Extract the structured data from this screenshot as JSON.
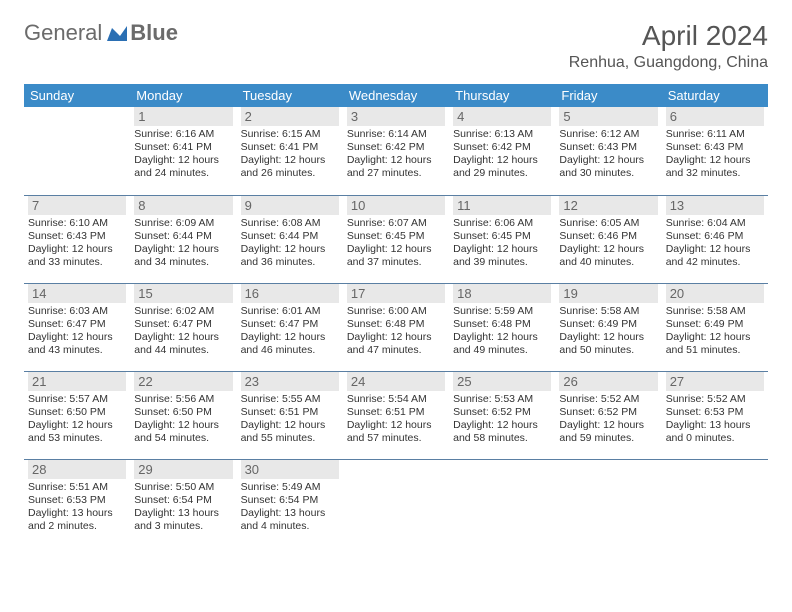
{
  "logo": {
    "text1": "General",
    "text2": "Blue"
  },
  "title": "April 2024",
  "location": "Renhua, Guangdong, China",
  "colors": {
    "header_bg": "#3b8bc8",
    "header_text": "#ffffff",
    "daynum_bg": "#e8e8e8",
    "border": "#5a7fa3",
    "logo_text": "#6b6b6b",
    "logo_icon": "#2b6fb3"
  },
  "weekdays": [
    "Sunday",
    "Monday",
    "Tuesday",
    "Wednesday",
    "Thursday",
    "Friday",
    "Saturday"
  ],
  "layout": {
    "first_weekday_index": 1,
    "days_in_month": 30
  },
  "days": {
    "1": {
      "sunrise": "6:16 AM",
      "sunset": "6:41 PM",
      "daylight": "12 hours and 24 minutes."
    },
    "2": {
      "sunrise": "6:15 AM",
      "sunset": "6:41 PM",
      "daylight": "12 hours and 26 minutes."
    },
    "3": {
      "sunrise": "6:14 AM",
      "sunset": "6:42 PM",
      "daylight": "12 hours and 27 minutes."
    },
    "4": {
      "sunrise": "6:13 AM",
      "sunset": "6:42 PM",
      "daylight": "12 hours and 29 minutes."
    },
    "5": {
      "sunrise": "6:12 AM",
      "sunset": "6:43 PM",
      "daylight": "12 hours and 30 minutes."
    },
    "6": {
      "sunrise": "6:11 AM",
      "sunset": "6:43 PM",
      "daylight": "12 hours and 32 minutes."
    },
    "7": {
      "sunrise": "6:10 AM",
      "sunset": "6:43 PM",
      "daylight": "12 hours and 33 minutes."
    },
    "8": {
      "sunrise": "6:09 AM",
      "sunset": "6:44 PM",
      "daylight": "12 hours and 34 minutes."
    },
    "9": {
      "sunrise": "6:08 AM",
      "sunset": "6:44 PM",
      "daylight": "12 hours and 36 minutes."
    },
    "10": {
      "sunrise": "6:07 AM",
      "sunset": "6:45 PM",
      "daylight": "12 hours and 37 minutes."
    },
    "11": {
      "sunrise": "6:06 AM",
      "sunset": "6:45 PM",
      "daylight": "12 hours and 39 minutes."
    },
    "12": {
      "sunrise": "6:05 AM",
      "sunset": "6:46 PM",
      "daylight": "12 hours and 40 minutes."
    },
    "13": {
      "sunrise": "6:04 AM",
      "sunset": "6:46 PM",
      "daylight": "12 hours and 42 minutes."
    },
    "14": {
      "sunrise": "6:03 AM",
      "sunset": "6:47 PM",
      "daylight": "12 hours and 43 minutes."
    },
    "15": {
      "sunrise": "6:02 AM",
      "sunset": "6:47 PM",
      "daylight": "12 hours and 44 minutes."
    },
    "16": {
      "sunrise": "6:01 AM",
      "sunset": "6:47 PM",
      "daylight": "12 hours and 46 minutes."
    },
    "17": {
      "sunrise": "6:00 AM",
      "sunset": "6:48 PM",
      "daylight": "12 hours and 47 minutes."
    },
    "18": {
      "sunrise": "5:59 AM",
      "sunset": "6:48 PM",
      "daylight": "12 hours and 49 minutes."
    },
    "19": {
      "sunrise": "5:58 AM",
      "sunset": "6:49 PM",
      "daylight": "12 hours and 50 minutes."
    },
    "20": {
      "sunrise": "5:58 AM",
      "sunset": "6:49 PM",
      "daylight": "12 hours and 51 minutes."
    },
    "21": {
      "sunrise": "5:57 AM",
      "sunset": "6:50 PM",
      "daylight": "12 hours and 53 minutes."
    },
    "22": {
      "sunrise": "5:56 AM",
      "sunset": "6:50 PM",
      "daylight": "12 hours and 54 minutes."
    },
    "23": {
      "sunrise": "5:55 AM",
      "sunset": "6:51 PM",
      "daylight": "12 hours and 55 minutes."
    },
    "24": {
      "sunrise": "5:54 AM",
      "sunset": "6:51 PM",
      "daylight": "12 hours and 57 minutes."
    },
    "25": {
      "sunrise": "5:53 AM",
      "sunset": "6:52 PM",
      "daylight": "12 hours and 58 minutes."
    },
    "26": {
      "sunrise": "5:52 AM",
      "sunset": "6:52 PM",
      "daylight": "12 hours and 59 minutes."
    },
    "27": {
      "sunrise": "5:52 AM",
      "sunset": "6:53 PM",
      "daylight": "13 hours and 0 minutes."
    },
    "28": {
      "sunrise": "5:51 AM",
      "sunset": "6:53 PM",
      "daylight": "13 hours and 2 minutes."
    },
    "29": {
      "sunrise": "5:50 AM",
      "sunset": "6:54 PM",
      "daylight": "13 hours and 3 minutes."
    },
    "30": {
      "sunrise": "5:49 AM",
      "sunset": "6:54 PM",
      "daylight": "13 hours and 4 minutes."
    }
  },
  "labels": {
    "sunrise": "Sunrise:",
    "sunset": "Sunset:",
    "daylight": "Daylight:"
  }
}
